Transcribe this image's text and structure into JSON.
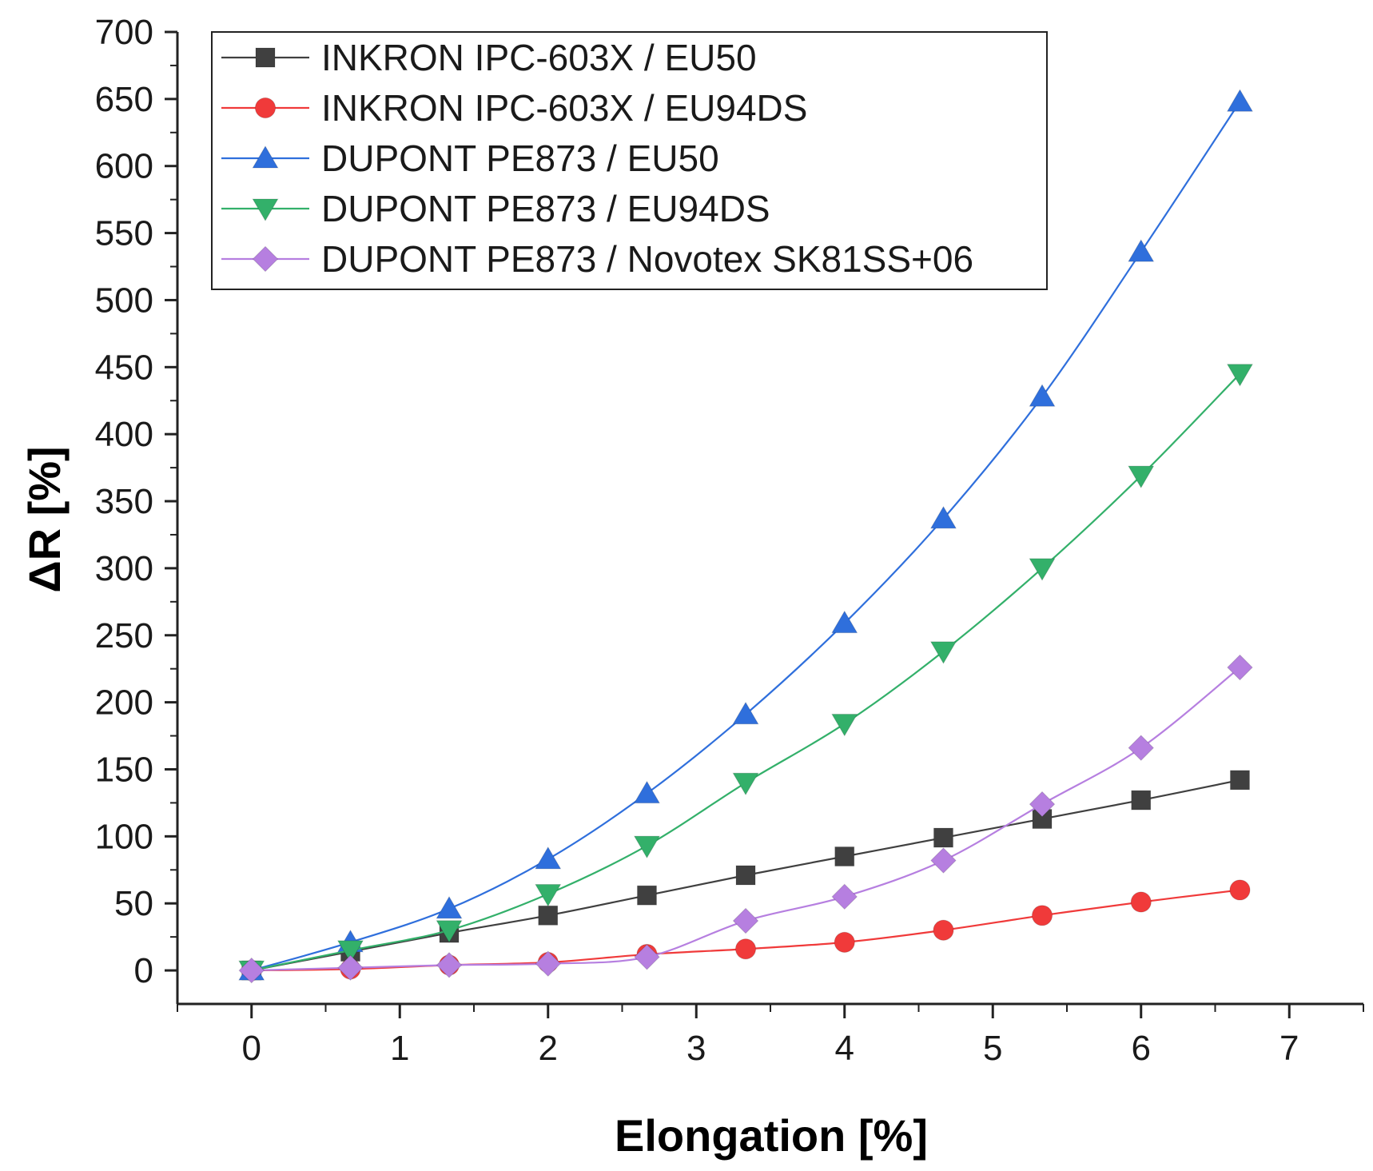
{
  "chart_data": {
    "type": "line",
    "title": "",
    "xlabel": "Elongation [%]",
    "ylabel": "ΔR [%]",
    "xlim": [
      -0.5,
      7.5
    ],
    "ylim": [
      -25,
      700
    ],
    "x_ticks": [
      0,
      1,
      2,
      3,
      4,
      5,
      6,
      7
    ],
    "y_ticks": [
      0,
      50,
      100,
      150,
      200,
      250,
      300,
      350,
      400,
      450,
      500,
      550,
      600,
      650,
      700
    ],
    "legend_position": "top-left",
    "x": [
      0,
      0.667,
      1.333,
      2,
      2.667,
      3.333,
      4,
      4.667,
      5.333,
      6,
      6.667
    ],
    "series": [
      {
        "name": "INKRON IPC-603X / EU50",
        "color": "#404040",
        "marker": "square",
        "values": [
          0,
          14,
          28,
          41,
          56,
          71,
          85,
          99,
          113,
          127,
          142
        ]
      },
      {
        "name": "INKRON IPC-603X / EU94DS",
        "color": "#f03a3a",
        "marker": "circle",
        "values": [
          0,
          1,
          4,
          6,
          12,
          16,
          21,
          30,
          41,
          51,
          60
        ]
      },
      {
        "name": "DUPONT PE873 / EU50",
        "color": "#2f6fdc",
        "marker": "triangle-up",
        "values": [
          0,
          21,
          46,
          83,
          132,
          191,
          259,
          337,
          428,
          536,
          648
        ]
      },
      {
        "name": "DUPONT PE873 / EU94DS",
        "color": "#33b06a",
        "marker": "triangle-down",
        "values": [
          0,
          15,
          30,
          57,
          93,
          140,
          184,
          238,
          300,
          369,
          445
        ]
      },
      {
        "name": "DUPONT PE873 / Novotex SK81SS+06",
        "color": "#b67fe0",
        "marker": "diamond",
        "values": [
          0,
          2,
          4,
          5,
          10,
          37,
          55,
          82,
          124,
          166,
          226
        ]
      }
    ]
  }
}
